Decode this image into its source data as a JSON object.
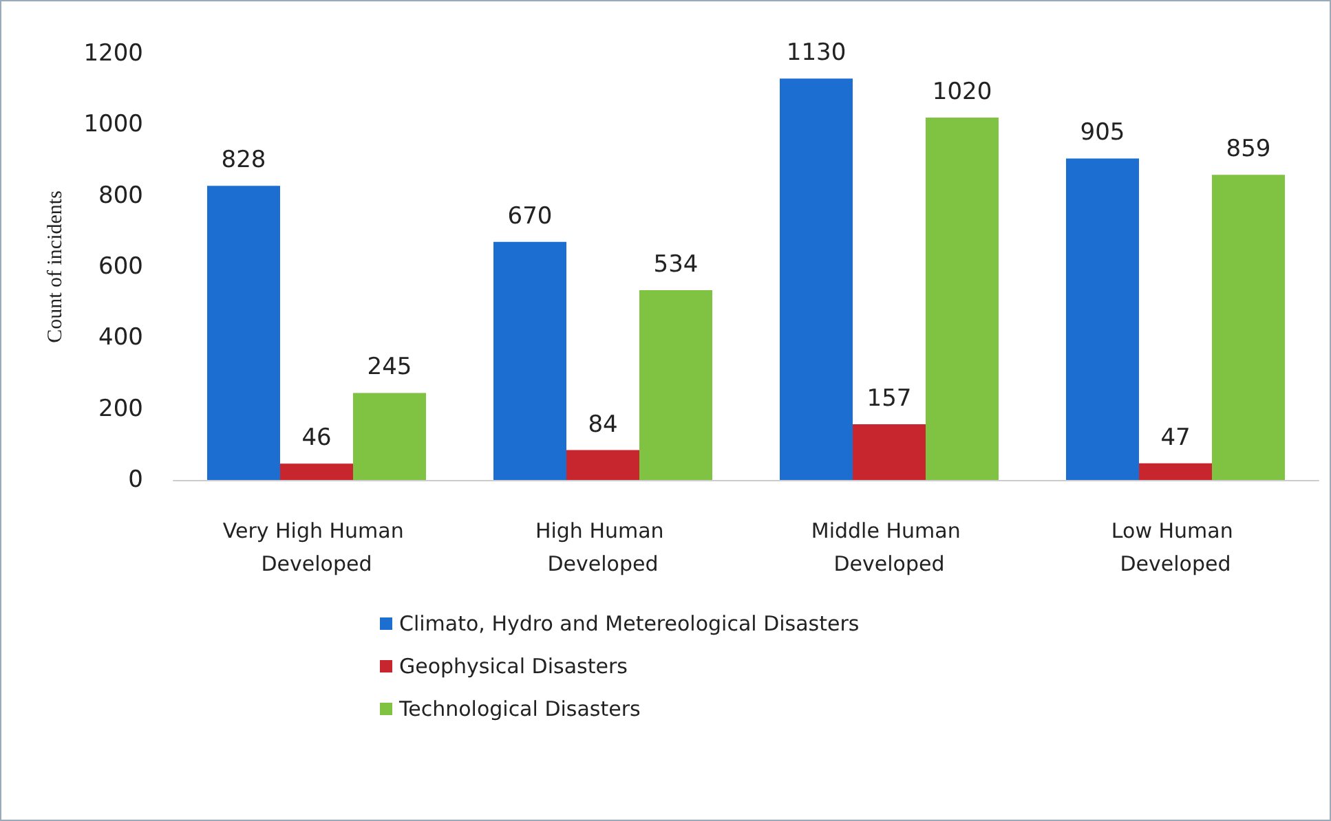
{
  "chart_data": {
    "type": "bar",
    "ylabel": "Count of incidents",
    "categories": [
      "Very High Human Developed",
      "High Human Developed",
      "Middle Human Developed",
      "Low Human Developed"
    ],
    "series": [
      {
        "name": "Climato, Hydro and Metereological Disasters",
        "color": "#1c6fd1",
        "values": [
          828,
          670,
          1130,
          905
        ]
      },
      {
        "name": "Geophysical Disasters",
        "color": "#c8262e",
        "values": [
          46,
          84,
          157,
          47
        ]
      },
      {
        "name": "Technological Disasters",
        "color": "#80c342",
        "values": [
          245,
          534,
          1020,
          859
        ]
      }
    ],
    "ylim": [
      0,
      1200
    ],
    "yticks": [
      0,
      200,
      400,
      600,
      800,
      1000,
      1200
    ],
    "data_labels": true,
    "grid": false,
    "legend": "bottom"
  }
}
